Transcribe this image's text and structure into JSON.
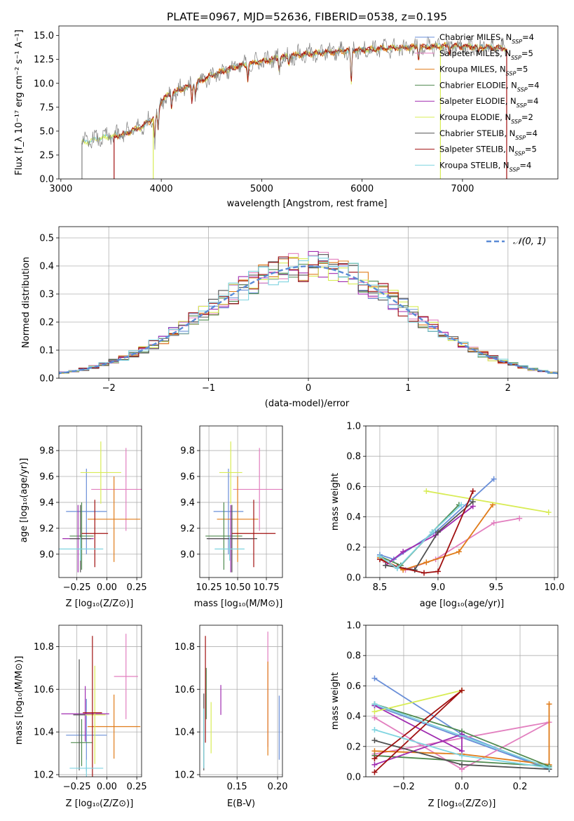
{
  "colors": {
    "chabrier_miles": "#6a8fd8",
    "salpeter_miles": "#e27fbf",
    "kroupa_miles": "#e07c1a",
    "chabrier_elodie": "#4f8a4f",
    "salpeter_elodie": "#a02cb0",
    "kroupa_elodie": "#d8ec55",
    "chabrier_stelib": "#505050",
    "salpeter_stelib": "#a01010",
    "kroupa_stelib": "#7fd4e0",
    "spectrum": "#808080"
  },
  "chart_data": [
    {
      "type": "line",
      "title": "PLATE=0967, MJD=52636, FIBERID=0538, z=0.195",
      "xlabel": "wavelength [Angstrom, rest frame]",
      "ylabel": "Flux [f_λ 10⁻¹⁷ erg cm⁻² s⁻¹ A⁻¹]",
      "xlim": [
        2980,
        7950
      ],
      "ylim": [
        0,
        16
      ],
      "xticks": [
        3000,
        4000,
        5000,
        6000,
        7000
      ],
      "yticks": [
        0.0,
        2.5,
        5.0,
        7.5,
        10.0,
        12.5,
        15.0
      ],
      "grid": false,
      "legend_position": "top-right",
      "legend": [
        "Chabrier MILES, N_SSP=4",
        "Salpeter MILES, N_SSP=5",
        "Kroupa MILES, N_SSP=5",
        "Chabrier ELODIE, N_SSP=4",
        "Salpeter ELODIE, N_SSP=4",
        "Kroupa ELODIE, N_SSP=2",
        "Chabrier STELIB, N_SSP=4",
        "Salpeter STELIB, N_SSP=5",
        "Kroupa STELIB, N_SSP=4"
      ],
      "spectrum_start": [
        3210,
        3530,
        3920
      ],
      "spectrum_end": [
        6780,
        7440
      ],
      "continuum": {
        "x": [
          3210,
          3400,
          3600,
          3800,
          3950,
          4000,
          4100,
          4300,
          4500,
          4700,
          5000,
          5300,
          5600,
          6000,
          6300,
          6600,
          6900,
          7200,
          7440
        ],
        "y": [
          3.8,
          4.3,
          4.6,
          5.4,
          6.6,
          8.2,
          9.0,
          9.8,
          10.8,
          11.6,
          12.3,
          12.9,
          13.2,
          13.5,
          13.7,
          13.8,
          13.9,
          13.8,
          13.6
        ]
      }
    },
    {
      "type": "line",
      "xlabel": "(data-model)/error",
      "ylabel": "Normed distribution",
      "xlim": [
        -2.5,
        2.5
      ],
      "ylim": [
        0,
        0.54
      ],
      "xticks": [
        -2,
        -1,
        0,
        1,
        2
      ],
      "yticks": [
        0.0,
        0.1,
        0.2,
        0.3,
        0.4,
        0.5
      ],
      "grid": true,
      "legend_position": "top-right",
      "legend": [
        "𝒩(0, 1)"
      ],
      "reference_curve": "normal pdf, mean 0, sigma 1",
      "histogram_bin_width": 0.1
    },
    {
      "type": "scatter",
      "xlabel": "Z [log₁₀(Z/Z⊙)]",
      "ylabel": "age  [log₁₀(age/yr)]",
      "xlim": [
        -0.4,
        0.29
      ],
      "ylim": [
        8.82,
        9.99
      ],
      "xticks": [
        -0.25,
        0.0,
        0.25
      ],
      "xtick_labels": [
        "−0.25",
        "0.00",
        "0.25"
      ],
      "yticks": [
        9.0,
        9.2,
        9.4,
        9.6,
        9.8
      ],
      "grid": true,
      "series": [
        {
          "key": "chabrier_miles",
          "x": -0.17,
          "xerr": 0.17,
          "y": 9.33,
          "yerr": 0.33
        },
        {
          "key": "salpeter_miles",
          "x": 0.16,
          "xerr": 0.29,
          "y": 9.5,
          "yerr": 0.32
        },
        {
          "key": "kroupa_miles",
          "x": 0.06,
          "xerr": 0.22,
          "y": 9.27,
          "yerr": 0.33
        },
        {
          "key": "chabrier_elodie",
          "x": -0.21,
          "xerr": 0.1,
          "y": 9.14,
          "yerr": 0.26
        },
        {
          "key": "salpeter_elodie",
          "x": -0.24,
          "xerr": 0.13,
          "y": 9.12,
          "yerr": 0.26
        },
        {
          "key": "kroupa_elodie",
          "x": -0.05,
          "xerr": 0.17,
          "y": 9.63,
          "yerr": 0.24
        },
        {
          "key": "chabrier_stelib",
          "x": -0.22,
          "xerr": 0.09,
          "y": 9.12,
          "yerr": 0.26
        },
        {
          "key": "salpeter_stelib",
          "x": -0.1,
          "xerr": 0.11,
          "y": 9.16,
          "yerr": 0.26
        },
        {
          "key": "kroupa_stelib",
          "x": -0.22,
          "xerr": 0.19,
          "y": 9.04,
          "yerr": 0.09
        }
      ]
    },
    {
      "type": "scatter",
      "xlabel": "mass [log₁₀(M/M⊙)]",
      "ylabel": "",
      "xlim": [
        10.17,
        10.89
      ],
      "ylim": [
        8.82,
        9.99
      ],
      "xticks": [
        10.25,
        10.5,
        10.75
      ],
      "xtick_labels": [
        "10.25",
        "10.50",
        "10.75"
      ],
      "yticks": [
        9.0,
        9.2,
        9.4,
        9.6,
        9.8
      ],
      "grid": true,
      "series": [
        {
          "key": "chabrier_miles",
          "x": 10.42,
          "xerr": 0.13,
          "y": 9.33,
          "yerr": 0.33
        },
        {
          "key": "salpeter_miles",
          "x": 10.69,
          "xerr": 0.23,
          "y": 9.5,
          "yerr": 0.32
        },
        {
          "key": "kroupa_miles",
          "x": 10.5,
          "xerr": 0.18,
          "y": 9.27,
          "yerr": 0.33
        },
        {
          "key": "chabrier_elodie",
          "x": 10.38,
          "xerr": 0.16,
          "y": 9.14,
          "yerr": 0.26
        },
        {
          "key": "salpeter_elodie",
          "x": 10.44,
          "xerr": 0.2,
          "y": 9.12,
          "yerr": 0.26
        },
        {
          "key": "kroupa_elodie",
          "x": 10.44,
          "xerr": 0.1,
          "y": 9.63,
          "yerr": 0.24
        },
        {
          "key": "chabrier_stelib",
          "x": 10.45,
          "xerr": 0.22,
          "y": 9.12,
          "yerr": 0.26
        },
        {
          "key": "salpeter_stelib",
          "x": 10.64,
          "xerr": 0.19,
          "y": 9.16,
          "yerr": 0.26
        },
        {
          "key": "kroupa_stelib",
          "x": 10.43,
          "xerr": 0.13,
          "y": 9.04,
          "yerr": 0.09
        }
      ]
    },
    {
      "type": "line",
      "xlabel": "age  [log₁₀(age/yr)]",
      "ylabel": "mass weight",
      "xlim": [
        8.38,
        10.03
      ],
      "ylim": [
        0,
        1
      ],
      "xticks": [
        8.5,
        9.0,
        9.5,
        10.0
      ],
      "xtick_labels": [
        "8.5",
        "9.0",
        "9.5",
        "10.0"
      ],
      "yticks": [
        0.0,
        0.2,
        0.4,
        0.6,
        0.8,
        1.0
      ],
      "grid": true,
      "series": [
        {
          "key": "chabrier_miles",
          "x": [
            8.5,
            8.62,
            8.98,
            9.48
          ],
          "y": [
            0.15,
            0.12,
            0.3,
            0.65
          ]
        },
        {
          "key": "salpeter_miles",
          "x": [
            8.55,
            8.72,
            8.98,
            9.48,
            9.7
          ],
          "y": [
            0.1,
            0.05,
            0.12,
            0.36,
            0.39
          ]
        },
        {
          "key": "kroupa_miles",
          "x": [
            8.5,
            8.7,
            8.9,
            9.18,
            9.47
          ],
          "y": [
            0.13,
            0.05,
            0.1,
            0.17,
            0.48
          ]
        },
        {
          "key": "chabrier_elodie",
          "x": [
            8.5,
            8.68,
            8.95,
            9.18
          ],
          "y": [
            0.14,
            0.08,
            0.3,
            0.48
          ]
        },
        {
          "key": "salpeter_elodie",
          "x": [
            8.55,
            8.7,
            8.98,
            9.3
          ],
          "y": [
            0.08,
            0.17,
            0.28,
            0.47
          ]
        },
        {
          "key": "kroupa_elodie",
          "x": [
            8.9,
            9.95
          ],
          "y": [
            0.57,
            0.43
          ]
        },
        {
          "key": "chabrier_stelib",
          "x": [
            8.55,
            8.8,
            9.0,
            9.3
          ],
          "y": [
            0.08,
            0.05,
            0.3,
            0.5
          ]
        },
        {
          "key": "salpeter_stelib",
          "x": [
            8.5,
            8.65,
            8.88,
            9.0,
            9.3
          ],
          "y": [
            0.12,
            0.07,
            0.03,
            0.04,
            0.57
          ]
        },
        {
          "key": "kroupa_stelib",
          "x": [
            8.5,
            8.65,
            8.95,
            9.2
          ],
          "y": [
            0.14,
            0.06,
            0.3,
            0.48
          ]
        }
      ]
    },
    {
      "type": "scatter",
      "xlabel": "Z [log₁₀(Z/Z⊙)]",
      "ylabel": "mass [log₁₀(M/M⊙)]",
      "xlim": [
        -0.4,
        0.29
      ],
      "ylim": [
        10.19,
        10.9
      ],
      "xticks": [
        -0.25,
        0.0,
        0.25
      ],
      "xtick_labels": [
        "−0.25",
        "0.00",
        "0.25"
      ],
      "yticks": [
        10.2,
        10.4,
        10.6,
        10.8
      ],
      "grid": true,
      "series": [
        {
          "key": "chabrier_miles",
          "x": -0.17,
          "xerr": 0.17,
          "y": 10.385,
          "yerr": 0.17
        },
        {
          "key": "salpeter_miles",
          "x": 0.16,
          "xerr": 0.1,
          "y": 10.66,
          "yerr": 0.2
        },
        {
          "key": "kroupa_miles",
          "x": 0.06,
          "xerr": 0.22,
          "y": 10.425,
          "yerr": 0.15
        },
        {
          "key": "chabrier_elodie",
          "x": -0.21,
          "xerr": 0.09,
          "y": 10.35,
          "yerr": 0.11
        },
        {
          "key": "salpeter_elodie",
          "x": -0.18,
          "xerr": 0.2,
          "y": 10.485,
          "yerr": 0.13
        },
        {
          "key": "kroupa_elodie",
          "x": -0.1,
          "xerr": 0.09,
          "y": 10.48,
          "yerr": 0.23
        },
        {
          "key": "chabrier_stelib",
          "x": -0.23,
          "xerr": 0.05,
          "y": 10.48,
          "yerr": 0.26
        },
        {
          "key": "salpeter_stelib",
          "x": -0.12,
          "xerr": 0.08,
          "y": 10.49,
          "yerr": 0.36
        },
        {
          "key": "kroupa_stelib",
          "x": -0.17,
          "xerr": 0.14,
          "y": 10.23,
          "yerr": 0.04
        }
      ]
    },
    {
      "type": "scatter",
      "xlabel": "E(B-V)",
      "ylabel": "",
      "xlim": [
        0.104,
        0.206
      ],
      "ylim": [
        10.19,
        10.9
      ],
      "xticks": [
        0.15,
        0.2
      ],
      "xtick_labels": [
        "0.15",
        "0.20"
      ],
      "yticks": [
        10.2,
        10.4,
        10.6,
        10.8
      ],
      "grid": true,
      "series": [
        {
          "key": "chabrier_miles",
          "x": 0.202,
          "xerr": 0,
          "y": 10.42,
          "yerr": 0.15
        },
        {
          "key": "salpeter_miles",
          "x": 0.188,
          "xerr": 0,
          "y": 10.6,
          "yerr": 0.27
        },
        {
          "key": "kroupa_miles",
          "x": 0.188,
          "xerr": 0,
          "y": 10.51,
          "yerr": 0.22
        },
        {
          "key": "chabrier_elodie",
          "x": 0.112,
          "xerr": 0,
          "y": 10.58,
          "yerr": 0.12
        },
        {
          "key": "salpeter_elodie",
          "x": 0.13,
          "xerr": 0,
          "y": 10.55,
          "yerr": 0.07
        },
        {
          "key": "kroupa_elodie",
          "x": 0.118,
          "xerr": 0,
          "y": 10.42,
          "yerr": 0.12
        },
        {
          "key": "chabrier_stelib",
          "x": 0.109,
          "xerr": 0,
          "y": 10.4,
          "yerr": 0.18
        },
        {
          "key": "salpeter_stelib",
          "x": 0.111,
          "xerr": 0,
          "y": 10.6,
          "yerr": 0.25
        },
        {
          "key": "kroupa_stelib",
          "x": 0.109,
          "xerr": 0,
          "y": 10.37,
          "yerr": 0.14
        }
      ]
    },
    {
      "type": "line",
      "xlabel": "Z [log₁₀(Z/Z⊙)]",
      "ylabel": "mass weight",
      "xlim": [
        -0.33,
        0.33
      ],
      "ylim": [
        0,
        1
      ],
      "xticks": [
        -0.2,
        0.0,
        0.2
      ],
      "xtick_labels": [
        "−0.2",
        "0.0",
        "0.2"
      ],
      "yticks": [
        0.0,
        0.2,
        0.4,
        0.6,
        0.8,
        1.0
      ],
      "grid": true,
      "series": [
        {
          "key": "chabrier_miles",
          "x": [
            -0.3,
            0.0,
            0.3,
            -0.3
          ],
          "y": [
            0.65,
            0.28,
            0.05,
            0.47
          ]
        },
        {
          "key": "salpeter_miles",
          "x": [
            -0.3,
            0.0,
            0.3,
            -0.3
          ],
          "y": [
            0.39,
            0.05,
            0.36,
            0.15
          ]
        },
        {
          "key": "kroupa_miles",
          "x": [
            -0.3,
            0.0,
            0.3,
            0.3
          ],
          "y": [
            0.17,
            0.15,
            0.08,
            0.48
          ]
        },
        {
          "key": "chabrier_elodie",
          "x": [
            -0.3,
            0.0,
            0.3,
            -0.3
          ],
          "y": [
            0.48,
            0.3,
            0.07,
            0.14
          ]
        },
        {
          "key": "salpeter_elodie",
          "x": [
            -0.3,
            0.0,
            0.0,
            -0.3
          ],
          "y": [
            0.47,
            0.17,
            0.28,
            0.08
          ]
        },
        {
          "key": "kroupa_elodie",
          "x": [
            -0.3,
            0.0
          ],
          "y": [
            0.43,
            0.57
          ]
        },
        {
          "key": "chabrier_stelib",
          "x": [
            -0.3,
            0.0,
            0.3
          ],
          "y": [
            0.24,
            0.08,
            0.05
          ]
        },
        {
          "key": "salpeter_stelib",
          "x": [
            -0.3,
            0.0,
            -0.3
          ],
          "y": [
            0.03,
            0.57,
            0.12
          ]
        },
        {
          "key": "kroupa_stelib",
          "x": [
            -0.3,
            0.0,
            0.3,
            -0.3
          ],
          "y": [
            0.31,
            0.14,
            0.06,
            0.48
          ]
        }
      ]
    }
  ]
}
